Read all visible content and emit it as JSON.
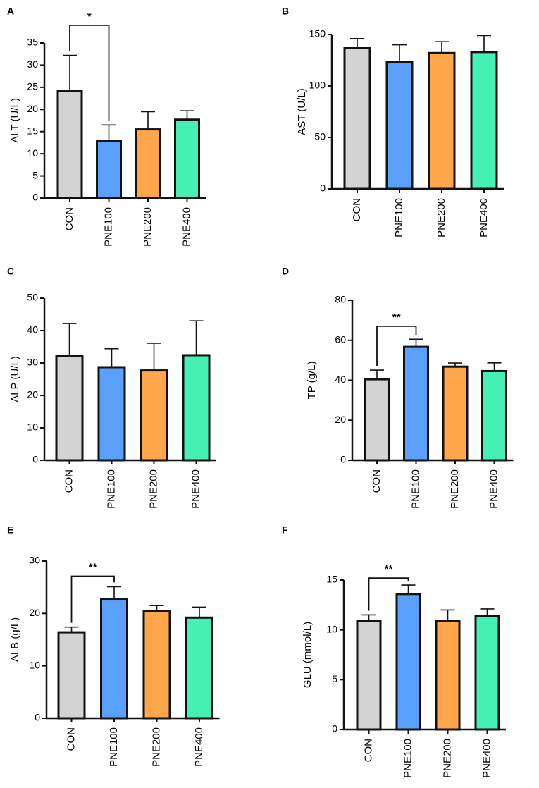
{
  "chart_data": [
    {
      "type": "bar",
      "panel": "A",
      "ylabel": "ALT (U/L)",
      "categories": [
        "CON",
        "PNE100",
        "PNE200",
        "PNE400"
      ],
      "values": [
        24.2,
        12.9,
        15.5,
        17.7
      ],
      "errors": [
        8.0,
        3.6,
        4.0,
        2.0
      ],
      "ylim": [
        0,
        35
      ],
      "yticks": [
        0,
        5,
        10,
        15,
        20,
        25,
        30,
        35
      ],
      "yticklabels": [
        "0",
        "5",
        "10",
        "15",
        "20",
        "25",
        "30",
        "35"
      ],
      "significance": {
        "from": 0,
        "to": 1,
        "label": "*",
        "y": 39
      }
    },
    {
      "type": "bar",
      "panel": "B",
      "ylabel": "AST (U/L)",
      "categories": [
        "CON",
        "PNE100",
        "PNE200",
        "PNE400"
      ],
      "values": [
        137,
        123,
        132,
        133
      ],
      "errors": [
        9,
        17,
        11,
        16
      ],
      "ylim": [
        0,
        150
      ],
      "yticks": [
        0,
        50,
        100,
        150
      ],
      "yticklabels": [
        "0",
        "50",
        "100",
        "150"
      ]
    },
    {
      "type": "bar",
      "panel": "C",
      "ylabel": "ALP (U/L)",
      "categories": [
        "CON",
        "PNE100",
        "PNE200",
        "PNE400"
      ],
      "values": [
        32.2,
        28.7,
        27.7,
        32.4
      ],
      "errors": [
        10.0,
        5.7,
        8.4,
        10.6
      ],
      "ylim": [
        0,
        50
      ],
      "yticks": [
        0,
        10,
        20,
        30,
        40,
        50
      ],
      "yticklabels": [
        "0",
        "10",
        "20",
        "30",
        "40",
        "50"
      ]
    },
    {
      "type": "bar",
      "panel": "D",
      "ylabel": "TP (g/L)",
      "categories": [
        "CON",
        "PNE100",
        "PNE200",
        "PNE400"
      ],
      "values": [
        40.5,
        56.7,
        46.8,
        44.6
      ],
      "errors": [
        4.6,
        3.8,
        1.8,
        4.1
      ],
      "ylim": [
        0,
        80
      ],
      "yticks": [
        0,
        20,
        40,
        60,
        80
      ],
      "yticklabels": [
        "0",
        "20",
        "40",
        "60",
        "80"
      ],
      "significance": {
        "from": 0,
        "to": 1,
        "label": "**",
        "y": 67
      }
    },
    {
      "type": "bar",
      "panel": "E",
      "ylabel": "ALB (g/L)",
      "categories": [
        "CON",
        "PNE100",
        "PNE200",
        "PNE400"
      ],
      "values": [
        16.4,
        22.8,
        20.5,
        19.2
      ],
      "errors": [
        1.0,
        2.3,
        1.0,
        2.0
      ],
      "ylim": [
        0,
        30
      ],
      "yticks": [
        0,
        10,
        20,
        30
      ],
      "yticklabels": [
        "0",
        "10",
        "20",
        "30"
      ],
      "significance": {
        "from": 0,
        "to": 1,
        "label": "**",
        "y": 27.1
      }
    },
    {
      "type": "bar",
      "panel": "F",
      "ylabel": "GLU (mmol/L)",
      "categories": [
        "CON",
        "PNE100",
        "PNE200",
        "PNE400"
      ],
      "values": [
        10.9,
        13.6,
        10.9,
        11.4
      ],
      "errors": [
        0.6,
        0.9,
        1.1,
        0.7
      ],
      "ylim": [
        0,
        15
      ],
      "yticks": [
        0,
        5,
        10,
        15
      ],
      "yticklabels": [
        "0",
        "5",
        "10",
        "15"
      ],
      "significance": {
        "from": 0,
        "to": 1,
        "label": "**",
        "y": 15.2
      }
    }
  ],
  "colors": {
    "CON": "#d3d3d3",
    "PNE100": "#5aa0ff",
    "PNE200": "#ffa64a",
    "PNE400": "#44f0b4",
    "stroke": "#111111"
  }
}
